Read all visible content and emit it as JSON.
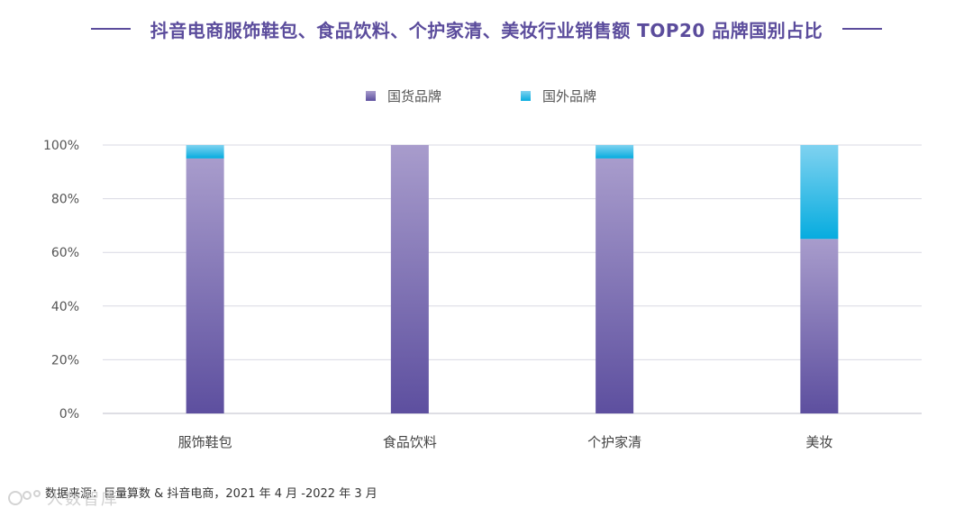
{
  "title": "抖音电商服饰鞋包、食品饮料、个护家清、美妆行业销售额 TOP20 品牌国别占比",
  "chart_data": {
    "type": "bar",
    "stacked": true,
    "categories": [
      "服饰鞋包",
      "食品饮料",
      "个护家清",
      "美妆"
    ],
    "series": [
      {
        "name": "国货品牌",
        "values": [
          95,
          100,
          95,
          65
        ]
      },
      {
        "name": "国外品牌",
        "values": [
          5,
          0,
          5,
          35
        ]
      }
    ],
    "ylim": [
      0,
      100
    ],
    "yticks": [
      0,
      20,
      40,
      60,
      80,
      100
    ],
    "ytick_labels": [
      "0%",
      "20%",
      "40%",
      "60%",
      "80%",
      "100%"
    ],
    "grid": true,
    "legend_position": "top-center"
  },
  "colors": {
    "domestic_top": "#a89ccc",
    "domestic_bottom": "#5d4f9f",
    "foreign_top": "#7fd2f0",
    "foreign_bottom": "#06acdf",
    "title": "#5b4c9c",
    "grid": "#d9d9e3"
  },
  "footer": {
    "source": "数据来源：巨量算数 & 抖音电商，2021 年 4 月 -2022 年 3 月"
  },
  "watermark": {
    "text": "人数智库"
  }
}
